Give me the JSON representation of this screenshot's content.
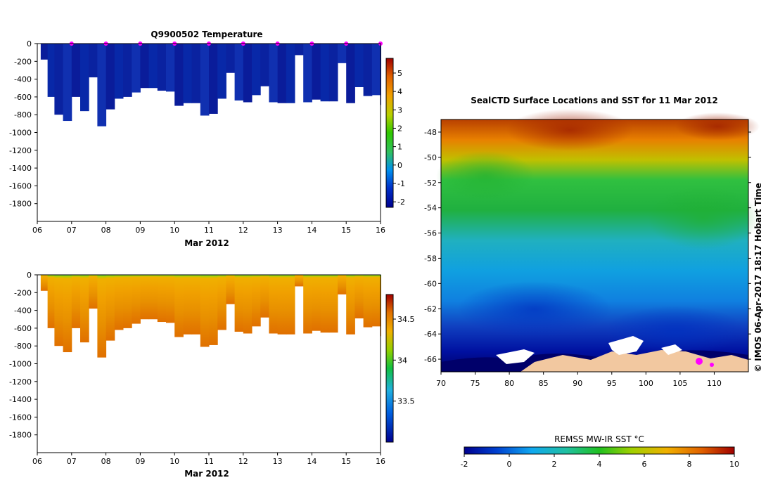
{
  "chart_data": [
    {
      "type": "heatmap",
      "title": "Q9900502  Temperature",
      "xlabel": "Mar 2012",
      "x_ticks": [
        "06",
        "07",
        "08",
        "09",
        "10",
        "11",
        "12",
        "13",
        "14",
        "15",
        "16"
      ],
      "xlim": [
        6,
        16
      ],
      "y_ticks": [
        "0",
        "-200",
        "-400",
        "-600",
        "-800",
        "-1000",
        "-1200",
        "-1400",
        "-1600",
        "-1800"
      ],
      "ylim": [
        -2000,
        0
      ],
      "colorbar_ticks": [
        "5",
        "4",
        "3",
        "2",
        "1",
        "0",
        "-1",
        "-2"
      ],
      "colorbar_range": [
        -2.3,
        5.8
      ],
      "profile_days": [
        6.1,
        6.3,
        6.5,
        6.75,
        7.0,
        7.25,
        7.5,
        7.75,
        8.0,
        8.25,
        8.5,
        8.75,
        9.0,
        9.25,
        9.5,
        9.75,
        10.0,
        10.25,
        10.5,
        10.75,
        11.0,
        11.25,
        11.5,
        11.75,
        12.0,
        12.25,
        12.5,
        12.75,
        13.0,
        13.25,
        13.5,
        13.75,
        14.0,
        14.25,
        14.5,
        14.75,
        15.0,
        15.25,
        15.5,
        15.75,
        16.0
      ],
      "profile_max_depth": [
        -180,
        -600,
        -800,
        -870,
        -600,
        -760,
        -380,
        -930,
        -740,
        -620,
        -600,
        -550,
        -500,
        -500,
        -530,
        -540,
        -700,
        -670,
        -670,
        -810,
        -790,
        -620,
        -330,
        -640,
        -660,
        -580,
        -480,
        -660,
        -670,
        -670,
        -130,
        -660,
        -630,
        -650,
        -650,
        -220,
        -670,
        -490,
        -590,
        -580,
        -690
      ],
      "surface_markers": [
        7,
        8,
        9,
        10,
        11,
        12,
        13,
        14,
        15,
        16
      ]
    },
    {
      "type": "heatmap",
      "title": "",
      "xlabel": "Mar 2012",
      "x_ticks": [
        "06",
        "07",
        "08",
        "09",
        "10",
        "11",
        "12",
        "13",
        "14",
        "15",
        "16"
      ],
      "xlim": [
        6,
        16
      ],
      "y_ticks": [
        "0",
        "-200",
        "-400",
        "-600",
        "-800",
        "-1000",
        "-1200",
        "-1400",
        "-1600",
        "-1800"
      ],
      "ylim": [
        -2000,
        0
      ],
      "colorbar_ticks": [
        "34.5",
        "34",
        "33.5"
      ],
      "colorbar_range": [
        33.0,
        34.8
      ]
    },
    {
      "type": "heatmap",
      "title": "SealCTD Surface Locations and SST for 11 Mar 2012",
      "x_ticks": [
        "70",
        "75",
        "80",
        "85",
        "90",
        "95",
        "100",
        "105",
        "110"
      ],
      "xlim": [
        70,
        115
      ],
      "y_ticks": [
        "-48",
        "-50",
        "-52",
        "-54",
        "-56",
        "-58",
        "-60",
        "-62",
        "-64",
        "-66"
      ],
      "ylim": [
        -67,
        -47
      ],
      "colorbar_label": "REMSS MW-IR SST °C",
      "colorbar_ticks": [
        "-2",
        "0",
        "2",
        "4",
        "6",
        "8",
        "10"
      ],
      "colorbar_range": [
        -2,
        10
      ],
      "side_label": "© IMOS 06-Apr-2017 18:17 Hobart Time"
    }
  ]
}
